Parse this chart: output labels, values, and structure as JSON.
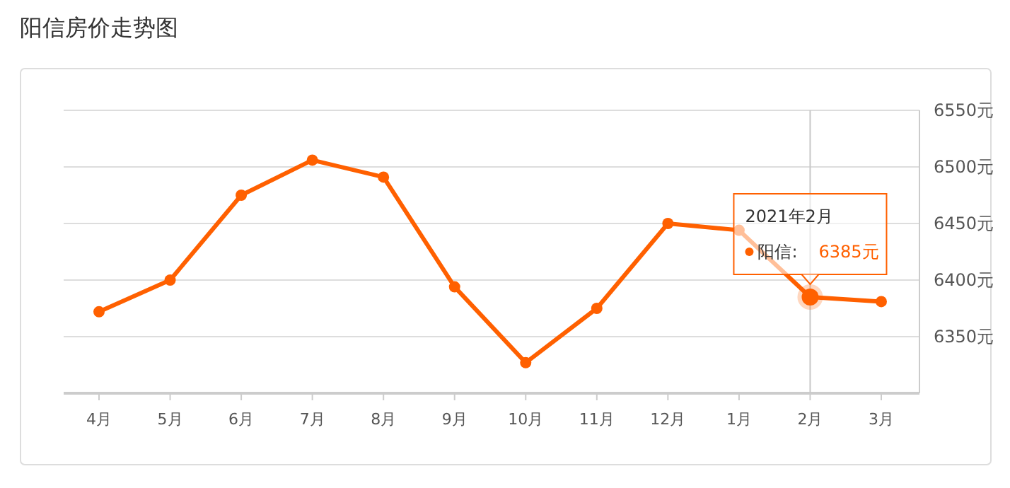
{
  "chart_data": {
    "type": "line",
    "title": "阳信房价走势图",
    "categories": [
      "4月",
      "5月",
      "6月",
      "7月",
      "8月",
      "9月",
      "10月",
      "11月",
      "12月",
      "1月",
      "2月",
      "3月"
    ],
    "series": [
      {
        "color": "#ff6000",
        "values": [
          6372,
          6400,
          6475,
          6506,
          6491,
          6394,
          6327,
          6375,
          6450,
          6444,
          6385,
          6381
        ]
      }
    ],
    "ylim": [
      6300,
      6550
    ],
    "yticks": [
      {
        "value": 6350,
        "label": "6350元"
      },
      {
        "value": 6400,
        "label": "6400元"
      },
      {
        "value": 6450,
        "label": "6450元"
      },
      {
        "value": 6500,
        "label": "6500元"
      },
      {
        "value": 6550,
        "label": "6550元"
      }
    ],
    "grid": "y",
    "marker": "circle",
    "line_style": "solid",
    "ref_lines": [
      {
        "axis": "x",
        "value": "2月",
        "color": "#c8c8c8"
      }
    ],
    "annotations": [
      "2021年2月",
      "阳信:",
      "6385元"
    ]
  }
}
